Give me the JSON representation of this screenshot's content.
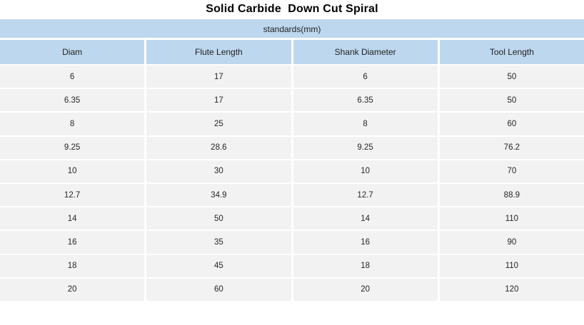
{
  "page": {
    "title": "Solid Carbide  Down Cut Spiral",
    "subtitle": "standards(mm)"
  },
  "colors": {
    "header_blue": "#bdd7ee",
    "row_gray": "#f2f2f2",
    "title_text": "#000000",
    "cell_text": "#262626",
    "gutter": "#ffffff"
  },
  "table": {
    "columns": [
      "Diam",
      "Flute Length",
      "Shank Diameter",
      "Tool Length"
    ],
    "rows": [
      [
        "6",
        "17",
        "6",
        "50"
      ],
      [
        "6.35",
        "17",
        "6.35",
        "50"
      ],
      [
        "8",
        "25",
        "8",
        "60"
      ],
      [
        "9.25",
        "28.6",
        "9.25",
        "76.2"
      ],
      [
        "10",
        "30",
        "10",
        "70"
      ],
      [
        "12.7",
        "34.9",
        "12.7",
        "88.9"
      ],
      [
        "14",
        "50",
        "14",
        "110"
      ],
      [
        "16",
        "35",
        "16",
        "90"
      ],
      [
        "18",
        "45",
        "18",
        "110"
      ],
      [
        "20",
        "60",
        "20",
        "120"
      ]
    ]
  }
}
